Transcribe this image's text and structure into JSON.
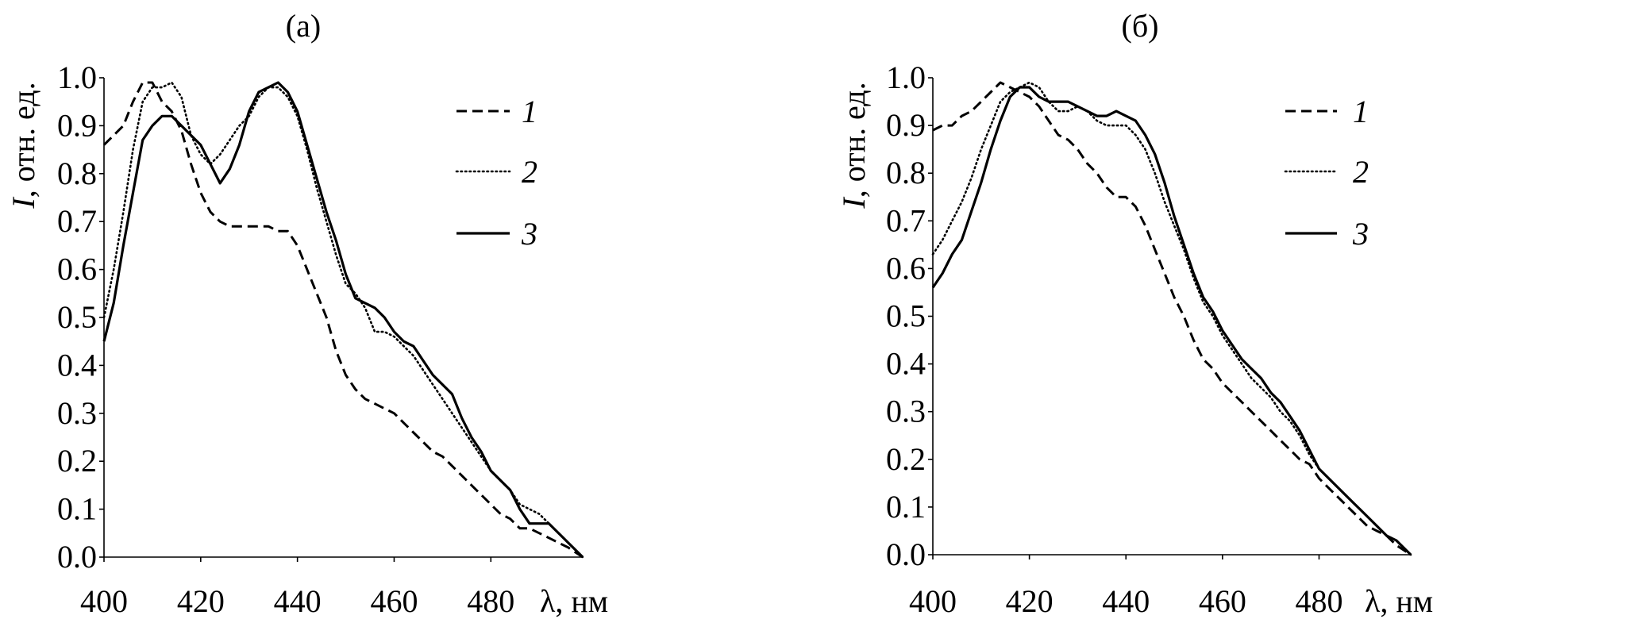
{
  "chart_data": [
    {
      "type": "line",
      "title": "(а)",
      "xlabel": "λ, нм",
      "ylabel_italic": "I",
      "ylabel_rest": ", отн. ед.",
      "xlim": [
        400,
        499
      ],
      "ylim": [
        0,
        1.0
      ],
      "xticks": [
        "400",
        "420",
        "440",
        "460",
        "480"
      ],
      "yticks": [
        "0.0",
        "0.1",
        "0.2",
        "0.3",
        "0.4",
        "0.5",
        "0.6",
        "0.7",
        "0.8",
        "0.9",
        "1.0"
      ],
      "grid": false,
      "legend_placement": "top-right",
      "x": [
        400,
        402,
        404,
        406,
        408,
        410,
        412,
        414,
        416,
        418,
        420,
        422,
        424,
        426,
        428,
        430,
        432,
        434,
        436,
        438,
        440,
        442,
        444,
        446,
        448,
        450,
        452,
        454,
        456,
        458,
        460,
        462,
        464,
        466,
        468,
        470,
        472,
        474,
        476,
        478,
        480,
        482,
        484,
        486,
        488,
        490,
        492,
        494,
        496,
        499
      ],
      "series": [
        {
          "name": "1",
          "style": "dashed",
          "values": [
            0.86,
            0.88,
            0.9,
            0.95,
            0.99,
            0.99,
            0.95,
            0.93,
            0.89,
            0.82,
            0.76,
            0.72,
            0.7,
            0.69,
            0.69,
            0.69,
            0.69,
            0.69,
            0.68,
            0.68,
            0.65,
            0.6,
            0.55,
            0.5,
            0.43,
            0.38,
            0.35,
            0.33,
            0.32,
            0.31,
            0.3,
            0.28,
            0.26,
            0.24,
            0.22,
            0.21,
            0.19,
            0.17,
            0.15,
            0.13,
            0.11,
            0.09,
            0.08,
            0.06,
            0.06,
            0.05,
            0.04,
            0.03,
            0.02,
            0.0
          ]
        },
        {
          "name": "2",
          "style": "dotted",
          "values": [
            0.5,
            0.6,
            0.72,
            0.85,
            0.95,
            0.98,
            0.98,
            0.99,
            0.96,
            0.88,
            0.84,
            0.82,
            0.84,
            0.87,
            0.9,
            0.92,
            0.96,
            0.98,
            0.98,
            0.96,
            0.92,
            0.85,
            0.77,
            0.7,
            0.63,
            0.57,
            0.55,
            0.52,
            0.47,
            0.47,
            0.46,
            0.44,
            0.42,
            0.39,
            0.36,
            0.33,
            0.3,
            0.27,
            0.24,
            0.21,
            0.18,
            0.16,
            0.14,
            0.11,
            0.1,
            0.09,
            0.07,
            0.05,
            0.03,
            0.0
          ]
        },
        {
          "name": "3",
          "style": "solid",
          "values": [
            0.45,
            0.53,
            0.65,
            0.76,
            0.87,
            0.9,
            0.92,
            0.92,
            0.9,
            0.88,
            0.86,
            0.82,
            0.78,
            0.81,
            0.86,
            0.93,
            0.97,
            0.98,
            0.99,
            0.97,
            0.93,
            0.86,
            0.79,
            0.72,
            0.66,
            0.59,
            0.54,
            0.53,
            0.52,
            0.5,
            0.47,
            0.45,
            0.44,
            0.41,
            0.38,
            0.36,
            0.34,
            0.29,
            0.25,
            0.22,
            0.18,
            0.16,
            0.14,
            0.1,
            0.07,
            0.07,
            0.07,
            0.05,
            0.03,
            0.0
          ]
        }
      ]
    },
    {
      "type": "line",
      "title": "(б)",
      "xlabel": "λ, нм",
      "ylabel_italic": "I",
      "ylabel_rest": ", отн. ед.",
      "xlim": [
        400,
        499
      ],
      "ylim": [
        0,
        1.0
      ],
      "xticks": [
        "400",
        "420",
        "440",
        "460",
        "480"
      ],
      "yticks": [
        "0.0",
        "0.1",
        "0.2",
        "0.3",
        "0.4",
        "0.5",
        "0.6",
        "0.7",
        "0.8",
        "0.9",
        "1.0"
      ],
      "grid": false,
      "legend_placement": "top-right",
      "x": [
        400,
        402,
        404,
        406,
        408,
        410,
        412,
        414,
        416,
        418,
        420,
        422,
        424,
        426,
        428,
        430,
        432,
        434,
        436,
        438,
        440,
        442,
        444,
        446,
        448,
        450,
        452,
        454,
        456,
        458,
        460,
        462,
        464,
        466,
        468,
        470,
        472,
        474,
        476,
        478,
        480,
        482,
        484,
        486,
        488,
        490,
        492,
        494,
        496,
        499
      ],
      "series": [
        {
          "name": "1",
          "style": "dashed",
          "values": [
            0.89,
            0.9,
            0.9,
            0.92,
            0.93,
            0.95,
            0.97,
            0.99,
            0.98,
            0.97,
            0.96,
            0.94,
            0.91,
            0.88,
            0.87,
            0.85,
            0.82,
            0.8,
            0.77,
            0.75,
            0.75,
            0.73,
            0.69,
            0.64,
            0.59,
            0.54,
            0.5,
            0.45,
            0.41,
            0.39,
            0.36,
            0.34,
            0.32,
            0.3,
            0.28,
            0.26,
            0.24,
            0.22,
            0.2,
            0.19,
            0.16,
            0.14,
            0.12,
            0.1,
            0.08,
            0.06,
            0.05,
            0.04,
            0.02,
            0.0
          ]
        },
        {
          "name": "2",
          "style": "dotted",
          "values": [
            0.63,
            0.66,
            0.7,
            0.74,
            0.79,
            0.85,
            0.9,
            0.95,
            0.97,
            0.98,
            0.99,
            0.98,
            0.95,
            0.93,
            0.93,
            0.94,
            0.93,
            0.91,
            0.9,
            0.9,
            0.9,
            0.88,
            0.85,
            0.8,
            0.74,
            0.69,
            0.64,
            0.58,
            0.53,
            0.5,
            0.46,
            0.43,
            0.4,
            0.37,
            0.35,
            0.33,
            0.3,
            0.28,
            0.25,
            0.21,
            0.18,
            0.16,
            0.14,
            0.12,
            0.1,
            0.08,
            0.06,
            0.04,
            0.03,
            0.0
          ]
        },
        {
          "name": "3",
          "style": "solid",
          "values": [
            0.56,
            0.59,
            0.63,
            0.66,
            0.72,
            0.78,
            0.85,
            0.91,
            0.96,
            0.98,
            0.98,
            0.96,
            0.95,
            0.95,
            0.95,
            0.94,
            0.93,
            0.92,
            0.92,
            0.93,
            0.92,
            0.91,
            0.88,
            0.84,
            0.78,
            0.71,
            0.65,
            0.59,
            0.54,
            0.51,
            0.47,
            0.44,
            0.41,
            0.39,
            0.37,
            0.34,
            0.32,
            0.29,
            0.26,
            0.22,
            0.18,
            0.16,
            0.14,
            0.12,
            0.1,
            0.08,
            0.06,
            0.04,
            0.03,
            0.0
          ]
        }
      ]
    }
  ]
}
